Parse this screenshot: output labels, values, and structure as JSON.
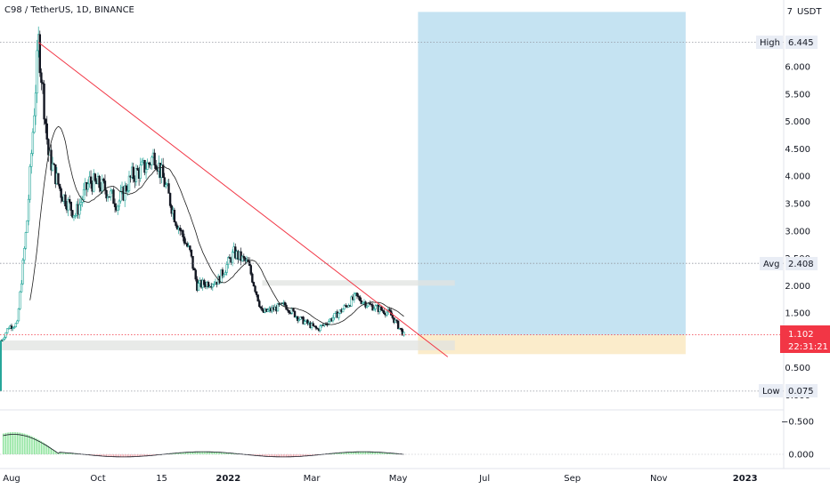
{
  "header": {
    "symbol": "C98 / TetherUS, 1D, BINANCE"
  },
  "price_axis": {
    "unit": "USDT",
    "ticks": [
      "7",
      "6.000",
      "5.500",
      "5.000",
      "4.500",
      "4.000",
      "3.500",
      "3.000",
      "2.500",
      "2.000",
      "1.500",
      "0.500",
      "0.000"
    ]
  },
  "price_levels": {
    "high": {
      "label": "High",
      "value": "6.445"
    },
    "avg": {
      "label": "Avg",
      "value": "2.408"
    },
    "low": {
      "label": "Low",
      "value": "0.075"
    },
    "last": {
      "value": "1.102",
      "countdown": "22:31:21"
    }
  },
  "time_axis": {
    "ticks": [
      "Aug",
      "Oct",
      "15",
      "2022",
      "Mar",
      "May",
      "Jul",
      "Sep",
      "Nov",
      "2023"
    ]
  },
  "oscillator": {
    "ticks": [
      "−0.500",
      "0.000"
    ]
  },
  "colors": {
    "up": "#26a69a",
    "down": "#131722",
    "trendline": "#f23645",
    "ma": "#1e1e1e",
    "target_zone": "#c5e3f2",
    "stop_zone": "#fbeccb",
    "last_price": "#f23645",
    "support_zone": "#e0e3e0"
  },
  "chart_data": {
    "type": "candlestick",
    "title": "C98 / TetherUS, 1D, BINANCE",
    "ylabel": "USDT",
    "ylim": [
      0.075,
      7
    ],
    "x_ticks": [
      "Aug",
      "Oct",
      "15",
      "2022",
      "Mar",
      "May",
      "Jul",
      "Sep",
      "Nov",
      "2023"
    ],
    "price_path": [
      [
        "2021-07-25",
        1.0
      ],
      [
        "2021-07-30",
        1.25
      ],
      [
        "2021-08-05",
        1.3
      ],
      [
        "2021-08-12",
        3.2
      ],
      [
        "2021-08-20",
        6.445
      ],
      [
        "2021-08-27",
        4.4
      ],
      [
        "2021-09-05",
        3.7
      ],
      [
        "2021-09-15",
        3.3
      ],
      [
        "2021-09-25",
        3.9
      ],
      [
        "2021-10-05",
        3.8
      ],
      [
        "2021-10-15",
        3.5
      ],
      [
        "2021-10-25",
        4.0
      ],
      [
        "2021-11-05",
        4.2
      ],
      [
        "2021-11-10",
        4.4
      ],
      [
        "2021-11-18",
        3.8
      ],
      [
        "2021-11-25",
        3.2
      ],
      [
        "2021-12-05",
        2.6
      ],
      [
        "2021-12-10",
        2.0
      ],
      [
        "2021-12-25",
        2.1
      ],
      [
        "2022-01-05",
        2.6
      ],
      [
        "2022-01-15",
        2.4
      ],
      [
        "2022-01-25",
        1.5
      ],
      [
        "2022-02-10",
        1.65
      ],
      [
        "2022-02-20",
        1.4
      ],
      [
        "2022-03-05",
        1.2
      ],
      [
        "2022-03-20",
        1.5
      ],
      [
        "2022-04-01",
        1.8
      ],
      [
        "2022-04-10",
        1.65
      ],
      [
        "2022-04-25",
        1.5
      ],
      [
        "2022-05-05",
        1.102
      ]
    ],
    "trendline": {
      "from": [
        "2021-08-20",
        6.445
      ],
      "to": [
        "2022-06-05",
        0.7
      ]
    },
    "long_position": {
      "start": "2022-05-15",
      "end": "2022-11-20",
      "entry": 1.102,
      "target": 7.0,
      "stop": 0.75
    },
    "support_zone": {
      "start": "2021-07-25",
      "end": "2022-06-10",
      "low": 0.82,
      "high": 1.0
    },
    "resistance_zone": {
      "start": "2022-01-25",
      "end": "2022-06-10",
      "low": 2.0,
      "high": 2.1
    },
    "high": 6.445,
    "avg": 2.408,
    "low": 0.075,
    "last": 1.102
  }
}
